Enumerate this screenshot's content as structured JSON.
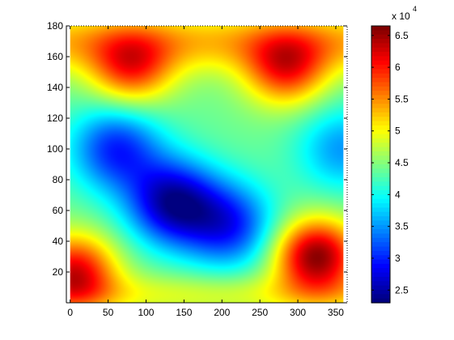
{
  "chart_data": {
    "type": "heatmap",
    "title": "",
    "xlabel": "",
    "ylabel": "",
    "xlim": [
      -5,
      365
    ],
    "ylim": [
      0,
      180
    ],
    "data_extent_x": [
      0,
      360
    ],
    "data_extent_y": [
      0,
      180
    ],
    "x_ticks": [
      "0",
      "50",
      "100",
      "150",
      "200",
      "250",
      "300",
      "350"
    ],
    "y_ticks": [
      "20",
      "40",
      "60",
      "80",
      "100",
      "120",
      "140",
      "160",
      "180"
    ],
    "colorbar": {
      "colormap": "jet",
      "range": [
        23000,
        66500
      ],
      "multiplier_label": "x 10",
      "exponent_label": "4",
      "tick_labels": [
        "2.5",
        "3",
        "3.5",
        "4",
        "4.5",
        "5",
        "5.5",
        "6",
        "6.5"
      ]
    },
    "field_features": [
      {
        "kind": "max",
        "x": 80,
        "y": 152,
        "value": 58000
      },
      {
        "kind": "max",
        "x": 285,
        "y": 152,
        "value": 59000
      },
      {
        "kind": "max",
        "x": 325,
        "y": 30,
        "value": 66000
      },
      {
        "kind": "max",
        "x": 5,
        "y": 20,
        "value": 62000
      },
      {
        "kind": "min",
        "x": 135,
        "y": 65,
        "value": 25000
      },
      {
        "kind": "min",
        "x": 210,
        "y": 50,
        "value": 30000
      },
      {
        "kind": "min",
        "x": 60,
        "y": 100,
        "value": 30000
      },
      {
        "kind": "min",
        "x": 360,
        "y": 100,
        "value": 35000
      }
    ],
    "grid": false
  }
}
